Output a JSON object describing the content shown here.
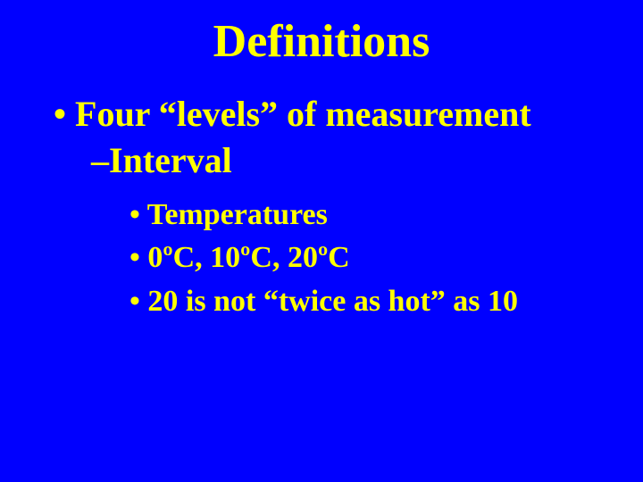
{
  "background_color": "#0000ff",
  "text_color": "#ffff00",
  "font_family": "Times New Roman",
  "title_fontsize": 52,
  "level1_fontsize": 40,
  "level2_fontsize": 40,
  "level3_fontsize": 34,
  "title": "Definitions",
  "bullet_level1": "• Four “levels” of measurement",
  "bullet_level2": "–Interval",
  "bullet_level3_a": "• Temperatures",
  "bullet_level3_b": "• 0ºC, 10ºC, 20ºC",
  "bullet_level3_c": "• 20 is not “twice as hot” as 10"
}
